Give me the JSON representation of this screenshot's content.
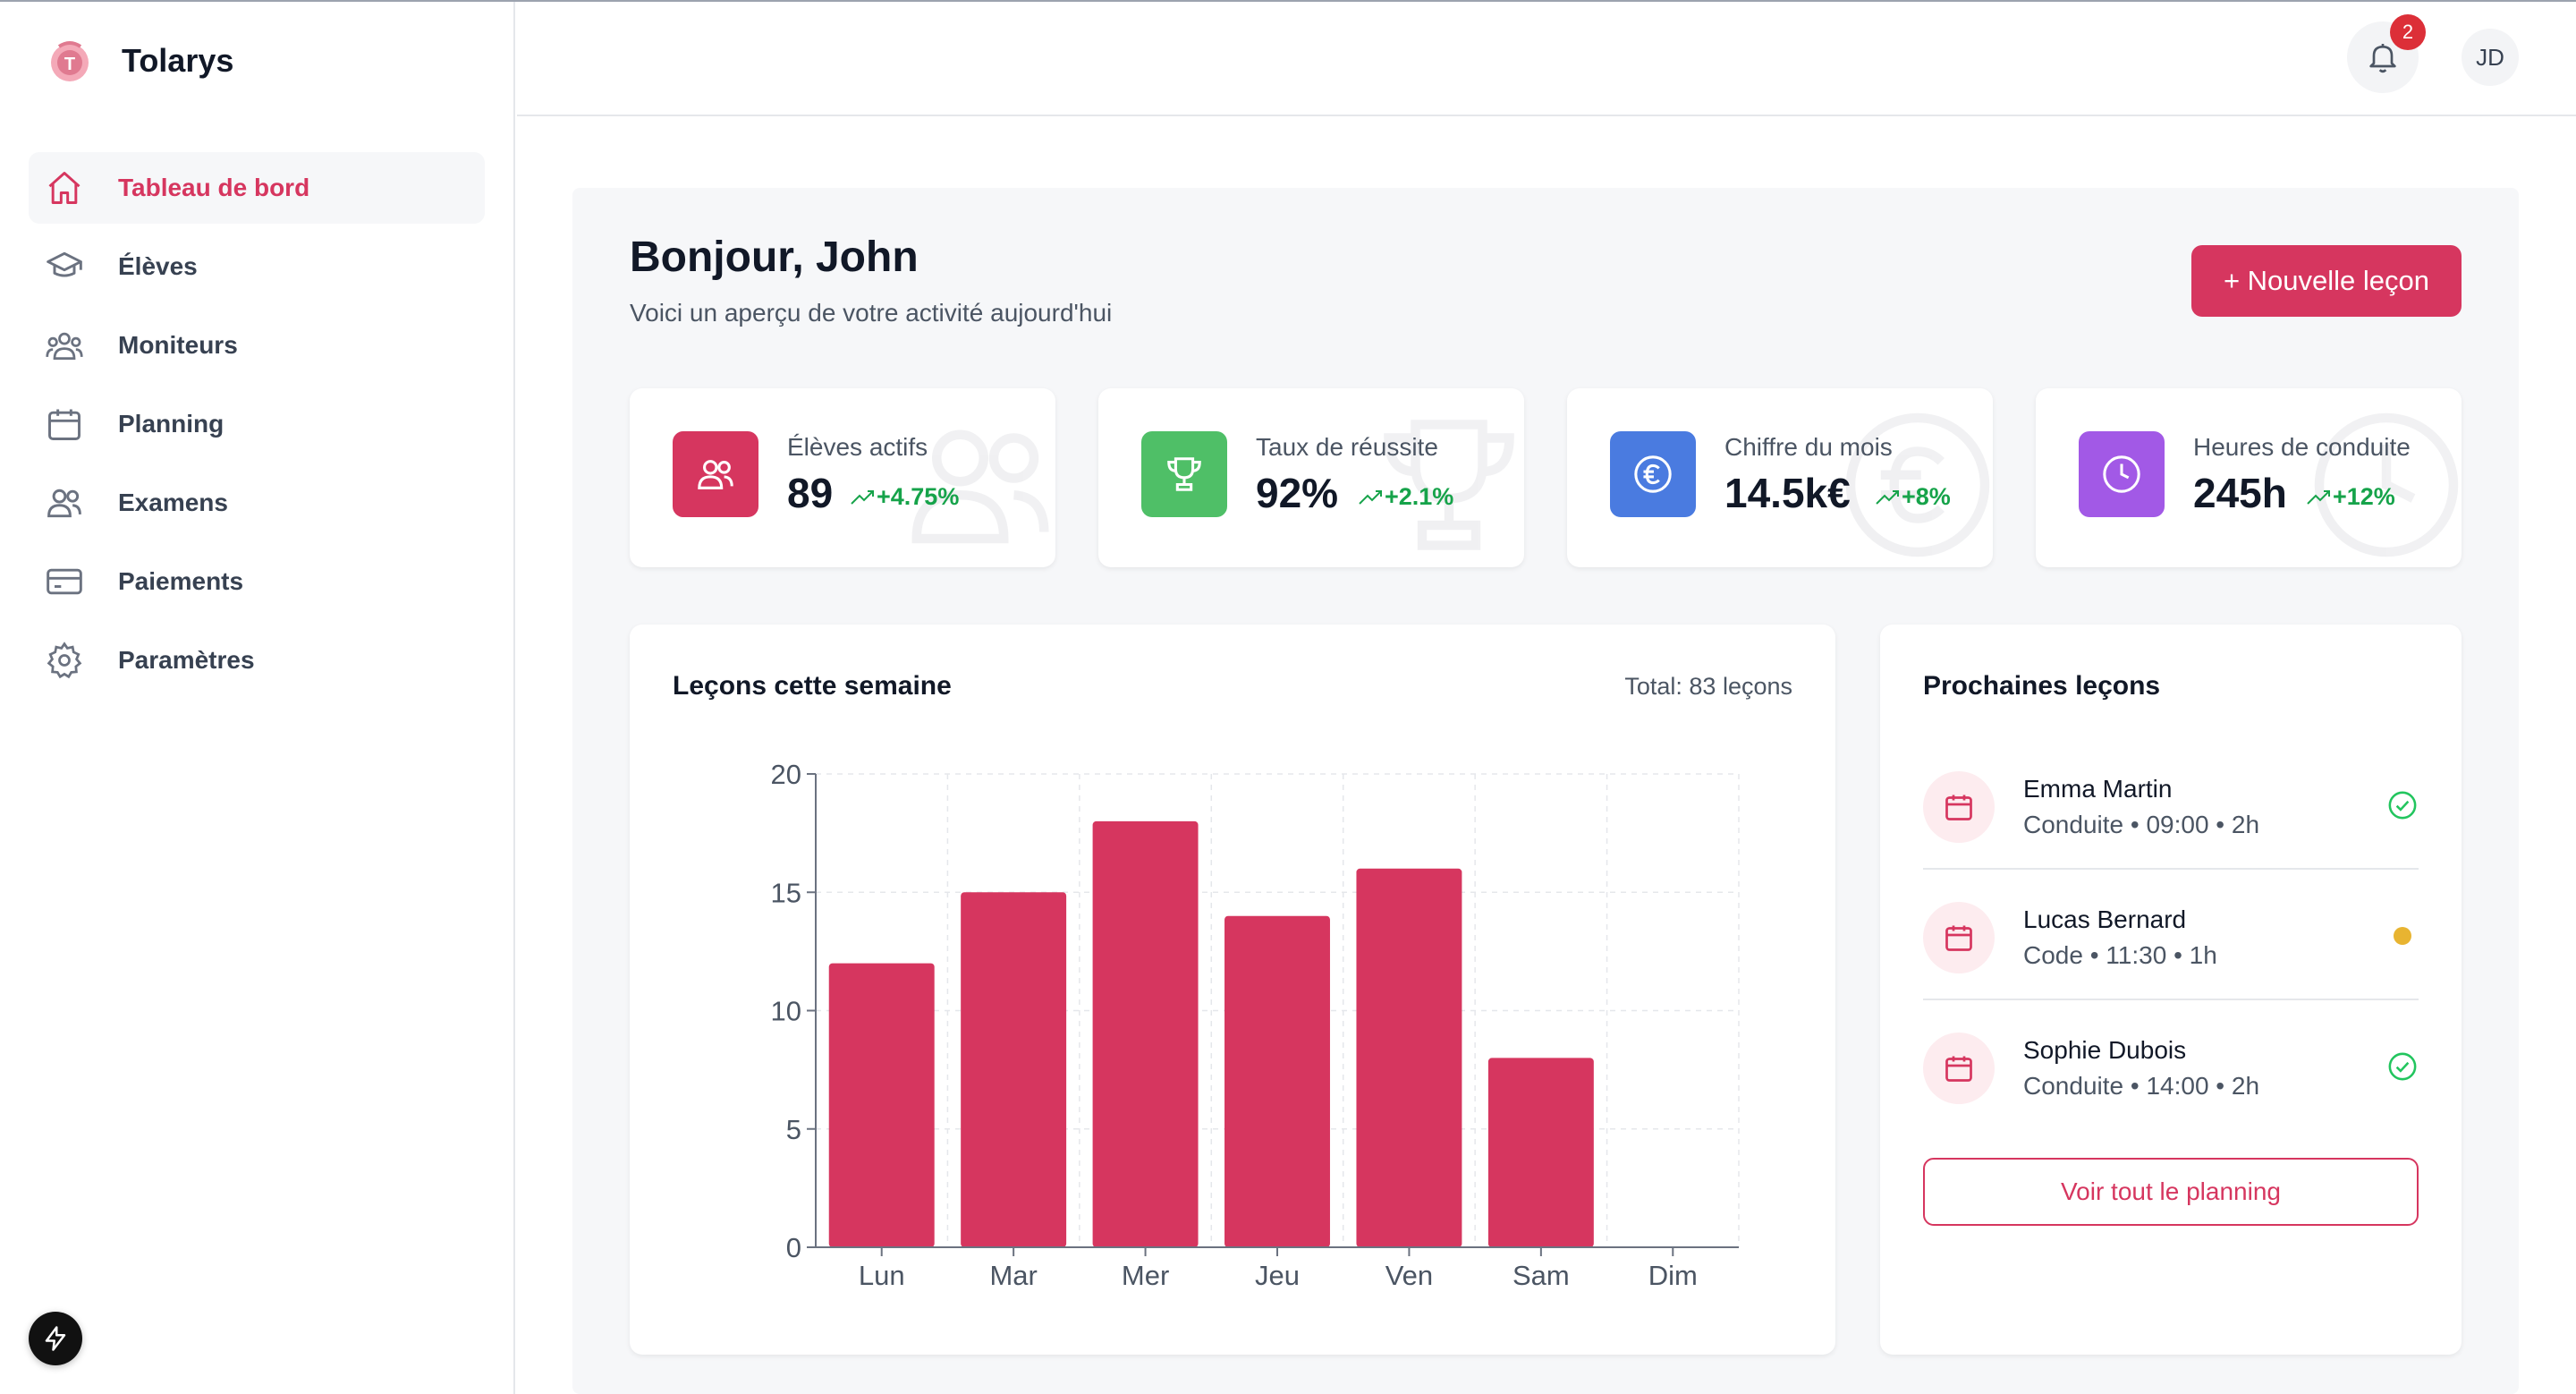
{
  "app": {
    "name": "Tolarys"
  },
  "sidebar": {
    "items": [
      {
        "label": "Tableau de bord",
        "icon": "home-icon",
        "active": true
      },
      {
        "label": "Élèves",
        "icon": "graduation-cap-icon",
        "active": false
      },
      {
        "label": "Moniteurs",
        "icon": "users-group-icon",
        "active": false
      },
      {
        "label": "Planning",
        "icon": "calendar-icon",
        "active": false
      },
      {
        "label": "Examens",
        "icon": "users-icon",
        "active": false
      },
      {
        "label": "Paiements",
        "icon": "credit-card-icon",
        "active": false
      },
      {
        "label": "Paramètres",
        "icon": "gear-icon",
        "active": false
      }
    ]
  },
  "header": {
    "notifications_count": "2",
    "avatar_initials": "JD"
  },
  "main": {
    "greeting": "Bonjour, John",
    "subtitle": "Voici un aperçu de votre activité aujourd'hui",
    "new_lesson_button": "+ Nouvelle leçon"
  },
  "stats": [
    {
      "label": "Élèves actifs",
      "value": "89",
      "trend": "+4.75%",
      "icon": "users-icon",
      "color": "#d6365f"
    },
    {
      "label": "Taux de réussite",
      "value": "92%",
      "trend": "+2.1%",
      "icon": "trophy-icon",
      "color": "#4fbf67"
    },
    {
      "label": "Chiffre du mois",
      "value": "14.5k€",
      "trend": "+8%",
      "icon": "euro-icon",
      "color": "#4a7be0"
    },
    {
      "label": "Heures de conduite",
      "value": "245h",
      "trend": "+12%",
      "icon": "clock-icon",
      "color": "#a259e6"
    }
  ],
  "chart": {
    "title": "Leçons cette semaine",
    "total": "Total: 83 leçons"
  },
  "chart_data": {
    "type": "bar",
    "categories": [
      "Lun",
      "Mar",
      "Mer",
      "Jeu",
      "Ven",
      "Sam",
      "Dim"
    ],
    "values": [
      12,
      15,
      18,
      14,
      16,
      8,
      0
    ],
    "yticks": [
      0,
      5,
      10,
      15,
      20
    ],
    "ylim": [
      0,
      20
    ],
    "grid": true,
    "color": "#d6365f"
  },
  "upcoming": {
    "title": "Prochaines leçons",
    "lessons": [
      {
        "name": "Emma Martin",
        "detail": "Conduite • 09:00 • 2h",
        "status": "confirmed"
      },
      {
        "name": "Lucas Bernard",
        "detail": "Code • 11:30 • 1h",
        "status": "pending"
      },
      {
        "name": "Sophie Dubois",
        "detail": "Conduite • 14:00 • 2h",
        "status": "confirmed"
      }
    ],
    "see_all": "Voir tout le planning"
  }
}
